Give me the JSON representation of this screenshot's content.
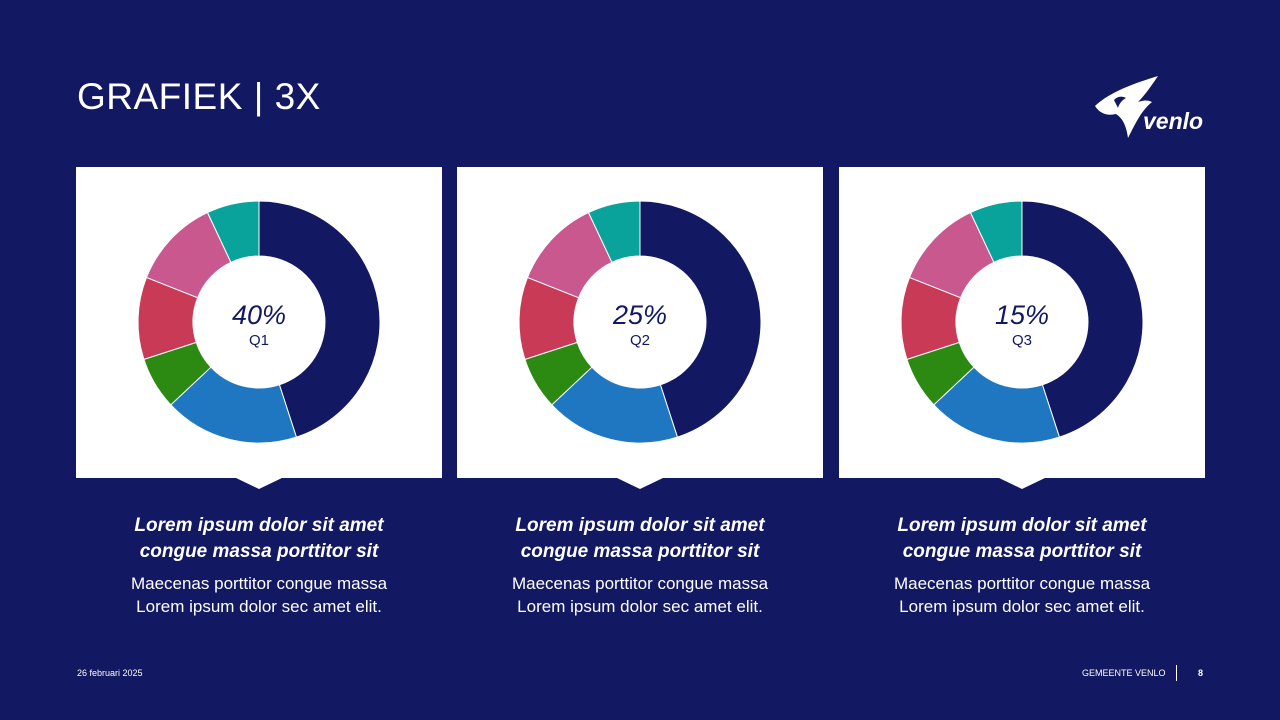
{
  "slide": {
    "title": "GRAFIEK | 3X",
    "logo_text": "venlo"
  },
  "colors": {
    "background": "#121862",
    "segments": [
      "#121862",
      "#1f77c1",
      "#2c8a13",
      "#c83a55",
      "#c9588e",
      "#0aa39b"
    ]
  },
  "chart_data": [
    {
      "type": "pie",
      "subtype": "donut",
      "categories": [
        "navy",
        "blue",
        "green",
        "red",
        "pink",
        "teal"
      ],
      "values": [
        45,
        18,
        7,
        11,
        12,
        7
      ],
      "center_value": "40%",
      "center_label": "Q1"
    },
    {
      "type": "pie",
      "subtype": "donut",
      "categories": [
        "navy",
        "blue",
        "green",
        "red",
        "pink",
        "teal"
      ],
      "values": [
        45,
        18,
        7,
        11,
        12,
        7
      ],
      "center_value": "25%",
      "center_label": "Q2"
    },
    {
      "type": "pie",
      "subtype": "donut",
      "categories": [
        "navy",
        "blue",
        "green",
        "red",
        "pink",
        "teal"
      ],
      "values": [
        45,
        18,
        7,
        11,
        12,
        7
      ],
      "center_value": "15%",
      "center_label": "Q3"
    }
  ],
  "captions": [
    {
      "head_line1": "Lorem ipsum dolor sit amet",
      "head_line2": "congue massa porttitor sit",
      "body_line1": "Maecenas porttitor congue massa",
      "body_line2": "Lorem ipsum dolor sec amet elit."
    },
    {
      "head_line1": "Lorem ipsum dolor sit amet",
      "head_line2": "congue massa porttitor sit",
      "body_line1": "Maecenas porttitor congue massa",
      "body_line2": "Lorem ipsum dolor sec amet elit."
    },
    {
      "head_line1": "Lorem ipsum dolor sit amet",
      "head_line2": "congue massa porttitor sit",
      "body_line1": "Maecenas porttitor congue massa",
      "body_line2": "Lorem ipsum dolor sec amet elit."
    }
  ],
  "footer": {
    "date": "26 februari 2025",
    "organization": "GEMEENTE VENLO",
    "page_number": "8"
  }
}
